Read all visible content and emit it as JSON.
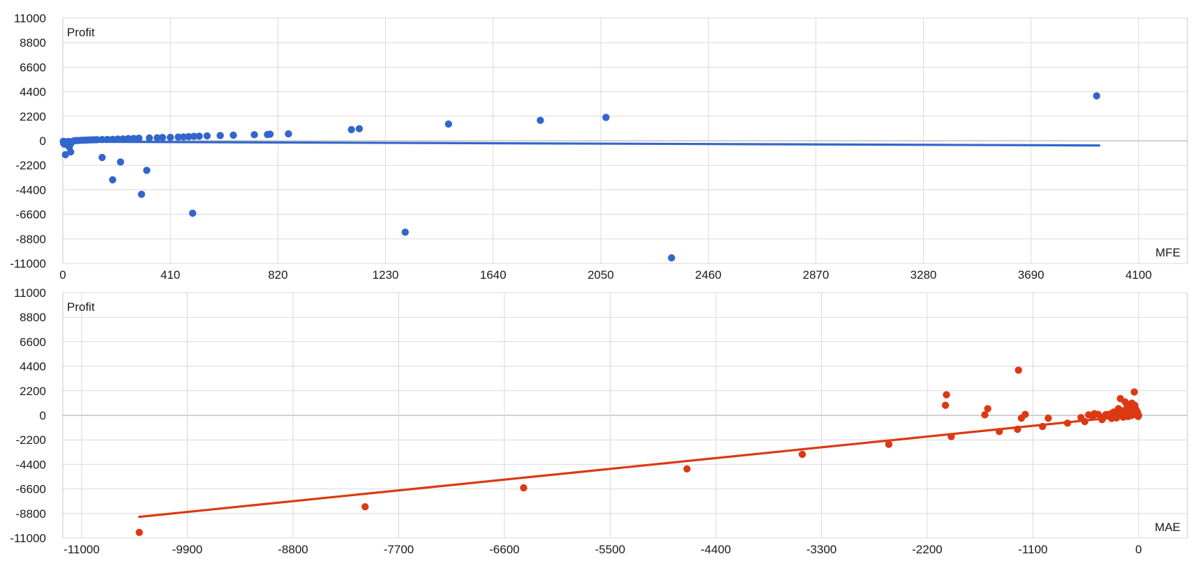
{
  "chart_data": [
    {
      "type": "scatter",
      "xlabel": "MFE",
      "ylabel": "Profit",
      "xlim": [
        0,
        4100
      ],
      "ylim": [
        -11000,
        11000
      ],
      "x_ticks": [
        0,
        410,
        820,
        1230,
        1640,
        2050,
        2460,
        2870,
        3280,
        3690,
        4100
      ],
      "y_ticks": [
        11000,
        8800,
        6600,
        4400,
        2200,
        0,
        -2200,
        -4400,
        -6600,
        -8800,
        -11000
      ],
      "grid": true,
      "point_color": "#3366cc",
      "trendline": {
        "x": [
          0,
          3950
        ],
        "y": [
          -80,
          -420
        ]
      },
      "points": [
        [
          2,
          -50
        ],
        [
          5,
          -120
        ],
        [
          8,
          -180
        ],
        [
          3,
          -220
        ],
        [
          10,
          -260
        ],
        [
          12,
          -90
        ],
        [
          15,
          -140
        ],
        [
          6,
          -300
        ],
        [
          20,
          -400
        ],
        [
          25,
          -560
        ],
        [
          30,
          -250
        ],
        [
          18,
          -150
        ],
        [
          22,
          -60
        ],
        [
          35,
          -100
        ],
        [
          40,
          -30
        ],
        [
          45,
          10
        ],
        [
          50,
          20
        ],
        [
          60,
          30
        ],
        [
          70,
          40
        ],
        [
          80,
          50
        ],
        [
          90,
          60
        ],
        [
          100,
          70
        ],
        [
          110,
          80
        ],
        [
          120,
          90
        ],
        [
          130,
          100
        ],
        [
          150,
          110
        ],
        [
          170,
          120
        ],
        [
          190,
          130
        ],
        [
          210,
          150
        ],
        [
          230,
          170
        ],
        [
          250,
          190
        ],
        [
          270,
          210
        ],
        [
          290,
          230
        ],
        [
          330,
          250
        ],
        [
          360,
          270
        ],
        [
          380,
          290
        ],
        [
          410,
          310
        ],
        [
          440,
          330
        ],
        [
          460,
          350
        ],
        [
          480,
          370
        ],
        [
          500,
          390
        ],
        [
          520,
          410
        ],
        [
          550,
          440
        ],
        [
          600,
          470
        ],
        [
          650,
          500
        ],
        [
          730,
          540
        ],
        [
          780,
          560
        ],
        [
          790,
          590
        ],
        [
          860,
          620
        ],
        [
          1100,
          1000
        ],
        [
          1130,
          1080
        ],
        [
          1470,
          1500
        ],
        [
          1820,
          1830
        ],
        [
          2070,
          2100
        ],
        [
          3940,
          4030
        ],
        [
          10,
          -1250
        ],
        [
          30,
          -1000
        ],
        [
          150,
          -1500
        ],
        [
          190,
          -3500
        ],
        [
          220,
          -1900
        ],
        [
          320,
          -2650
        ],
        [
          300,
          -4800
        ],
        [
          495,
          -6500
        ],
        [
          1305,
          -8200
        ],
        [
          2320,
          -10500
        ]
      ]
    },
    {
      "type": "scatter",
      "xlabel": "MAE",
      "ylabel": "Profit",
      "xlim": [
        -11000,
        0
      ],
      "ylim": [
        -11000,
        11000
      ],
      "x_ticks": [
        -11000,
        -9900,
        -8800,
        -7700,
        -6600,
        -5500,
        -4400,
        -3300,
        -2200,
        -1100,
        0
      ],
      "y_ticks": [
        11000,
        8800,
        6600,
        4400,
        2200,
        0,
        -2200,
        -4400,
        -6600,
        -8800,
        -11000
      ],
      "grid": true,
      "point_color": "#dc3912",
      "trendline": {
        "x": [
          -10400,
          -20
        ],
        "y": [
          -9100,
          10
        ]
      },
      "points": [
        [
          -10400,
          -10500
        ],
        [
          -8050,
          -8200
        ],
        [
          -6400,
          -6500
        ],
        [
          -4700,
          -4800
        ],
        [
          -3500,
          -3500
        ],
        [
          -2600,
          -2600
        ],
        [
          -2000,
          1850
        ],
        [
          -2010,
          900
        ],
        [
          -1950,
          -1900
        ],
        [
          -1600,
          50
        ],
        [
          -1570,
          600
        ],
        [
          -1450,
          -1450
        ],
        [
          -1250,
          4050
        ],
        [
          -1260,
          -1250
        ],
        [
          -1220,
          -250
        ],
        [
          -1180,
          80
        ],
        [
          -1000,
          -1000
        ],
        [
          -940,
          -250
        ],
        [
          -740,
          -700
        ],
        [
          -600,
          -200
        ],
        [
          -560,
          -560
        ],
        [
          -460,
          150
        ],
        [
          -420,
          80
        ],
        [
          -380,
          -380
        ],
        [
          -320,
          -40
        ],
        [
          -300,
          110
        ],
        [
          -280,
          -280
        ],
        [
          -260,
          300
        ],
        [
          -230,
          -230
        ],
        [
          -210,
          600
        ],
        [
          -190,
          1500
        ],
        [
          -170,
          400
        ],
        [
          -160,
          -160
        ],
        [
          -140,
          1200
        ],
        [
          -130,
          200
        ],
        [
          -120,
          800
        ],
        [
          -110,
          -110
        ],
        [
          -100,
          700
        ],
        [
          -90,
          300
        ],
        [
          -80,
          500
        ],
        [
          -70,
          1100
        ],
        [
          -60,
          200
        ],
        [
          -50,
          100
        ],
        [
          -45,
          2100
        ],
        [
          -40,
          900
        ],
        [
          -35,
          450
        ],
        [
          -30,
          300
        ],
        [
          -25,
          150
        ],
        [
          -20,
          100
        ],
        [
          -15,
          50
        ],
        [
          -10,
          20
        ],
        [
          -8,
          -60
        ],
        [
          -5,
          -100
        ],
        [
          -3,
          30
        ],
        [
          -2,
          -20
        ],
        [
          -1,
          10
        ],
        [
          -12,
          250
        ],
        [
          -18,
          380
        ],
        [
          -28,
          520
        ],
        [
          -55,
          650
        ],
        [
          -65,
          60
        ],
        [
          -75,
          -20
        ],
        [
          -95,
          60
        ],
        [
          -150,
          30
        ],
        [
          -200,
          120
        ],
        [
          -240,
          40
        ],
        [
          -340,
          70
        ],
        [
          -360,
          -120
        ],
        [
          -480,
          -90
        ],
        [
          -520,
          40
        ]
      ]
    }
  ]
}
